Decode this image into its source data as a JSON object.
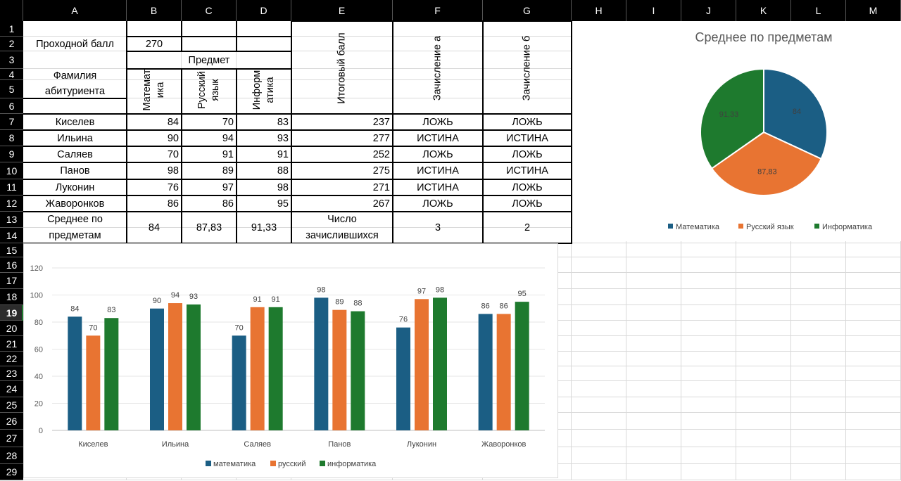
{
  "columns": [
    "A",
    "B",
    "C",
    "D",
    "E",
    "F",
    "G",
    "H",
    "I",
    "J",
    "K",
    "L",
    "M"
  ],
  "rows": [
    "1",
    "2",
    "3",
    "4",
    "5",
    "6",
    "7",
    "8",
    "9",
    "10",
    "11",
    "12",
    "13",
    "14",
    "15",
    "16",
    "17",
    "18",
    "19",
    "20",
    "21",
    "22",
    "23",
    "24",
    "25",
    "26",
    "27",
    "28",
    "29"
  ],
  "selected_row": "19",
  "table": {
    "pass_label": "Проходной балл",
    "pass_value": "270",
    "subject_header": "Предмет",
    "surname_header": "Фамилия абитуриента",
    "subj_math": "Математ ика",
    "subj_rus": "Русский язык",
    "subj_inf": "Информ атика",
    "total_header": "Итоговый балл",
    "enroll_a": "Зачисление а",
    "enroll_b": "Зачисление б",
    "rows": [
      {
        "name": "Киселев",
        "math": "84",
        "rus": "70",
        "inf": "83",
        "total": "237",
        "a": "ЛОЖЬ",
        "b": "ЛОЖЬ"
      },
      {
        "name": "Ильина",
        "math": "90",
        "rus": "94",
        "inf": "93",
        "total": "277",
        "a": "ИСТИНА",
        "b": "ИСТИНА"
      },
      {
        "name": "Саляев",
        "math": "70",
        "rus": "91",
        "inf": "91",
        "total": "252",
        "a": "ЛОЖЬ",
        "b": "ЛОЖЬ"
      },
      {
        "name": "Панов",
        "math": "98",
        "rus": "89",
        "inf": "88",
        "total": "275",
        "a": "ИСТИНА",
        "b": "ИСТИНА"
      },
      {
        "name": "Луконин",
        "math": "76",
        "rus": "97",
        "inf": "98",
        "total": "271",
        "a": "ИСТИНА",
        "b": "ЛОЖЬ"
      },
      {
        "name": "Жаворонков",
        "math": "86",
        "rus": "86",
        "inf": "95",
        "total": "267",
        "a": "ЛОЖЬ",
        "b": "ЛОЖЬ"
      }
    ],
    "avg_label": "Среднее по предметам",
    "avg_math": "84",
    "avg_rus": "87,83",
    "avg_inf": "91,33",
    "count_label": "Число зачислившихся",
    "count_a": "3",
    "count_b": "2"
  },
  "colors": {
    "math": "#1b5e84",
    "rus": "#e87432",
    "inf": "#1e7a2e",
    "header_bg": "#000000",
    "grid": "#d9d9d9"
  },
  "chart_data": [
    {
      "type": "pie",
      "title": "Среднее по предметам",
      "categories": [
        "Математика",
        "Русский язык",
        "Информатика"
      ],
      "values": [
        84,
        87.83,
        91.33
      ],
      "data_labels": [
        "84",
        "87,83",
        "91,33"
      ],
      "legend": "bottom"
    },
    {
      "type": "bar",
      "title": "",
      "categories": [
        "Киселев",
        "Ильина",
        "Саляев",
        "Панов",
        "Луконин",
        "Жаворонков"
      ],
      "series": [
        {
          "name": "математика",
          "values": [
            84,
            90,
            70,
            98,
            76,
            86
          ]
        },
        {
          "name": "русский",
          "values": [
            70,
            94,
            91,
            89,
            97,
            86
          ]
        },
        {
          "name": "информатика",
          "values": [
            83,
            93,
            91,
            88,
            98,
            95
          ]
        }
      ],
      "yticks": [
        "0",
        "20",
        "40",
        "60",
        "80",
        "100",
        "120"
      ],
      "ylim": [
        0,
        120
      ],
      "legend": "bottom",
      "grid": true
    }
  ]
}
